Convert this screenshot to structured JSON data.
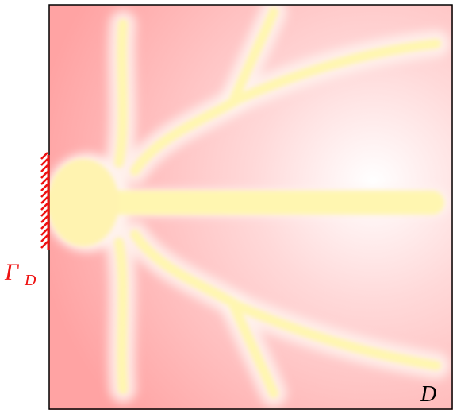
{
  "boundary_label": {
    "symbol": "Γ",
    "subscript": "D"
  },
  "domain_label": "D"
}
